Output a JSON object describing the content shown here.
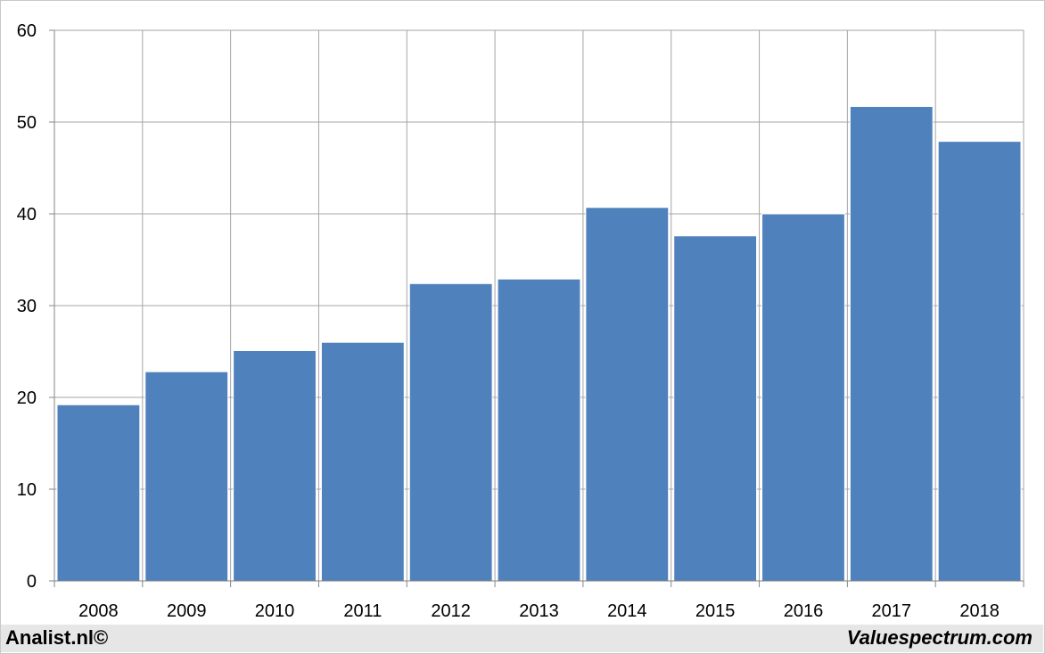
{
  "footer": {
    "left_text": "Analist.nl©",
    "right_text": "Valuespectrum.com"
  },
  "colors": {
    "bar": "#4f81bd",
    "grid": "#a6a6a6",
    "axis": "#868686"
  },
  "chart_data": {
    "type": "bar",
    "title": "",
    "xlabel": "",
    "ylabel": "",
    "categories": [
      "2008",
      "2009",
      "2010",
      "2011",
      "2012",
      "2013",
      "2014",
      "2015",
      "2016",
      "2017",
      "2018"
    ],
    "values": [
      19.2,
      22.8,
      25.1,
      26.0,
      32.4,
      32.9,
      40.7,
      37.6,
      40.0,
      51.7,
      47.9
    ],
    "ylim": [
      0,
      60
    ],
    "yticks": [
      "0",
      "10",
      "20",
      "30",
      "40",
      "50",
      "60"
    ],
    "grid": true,
    "legend": "none"
  }
}
